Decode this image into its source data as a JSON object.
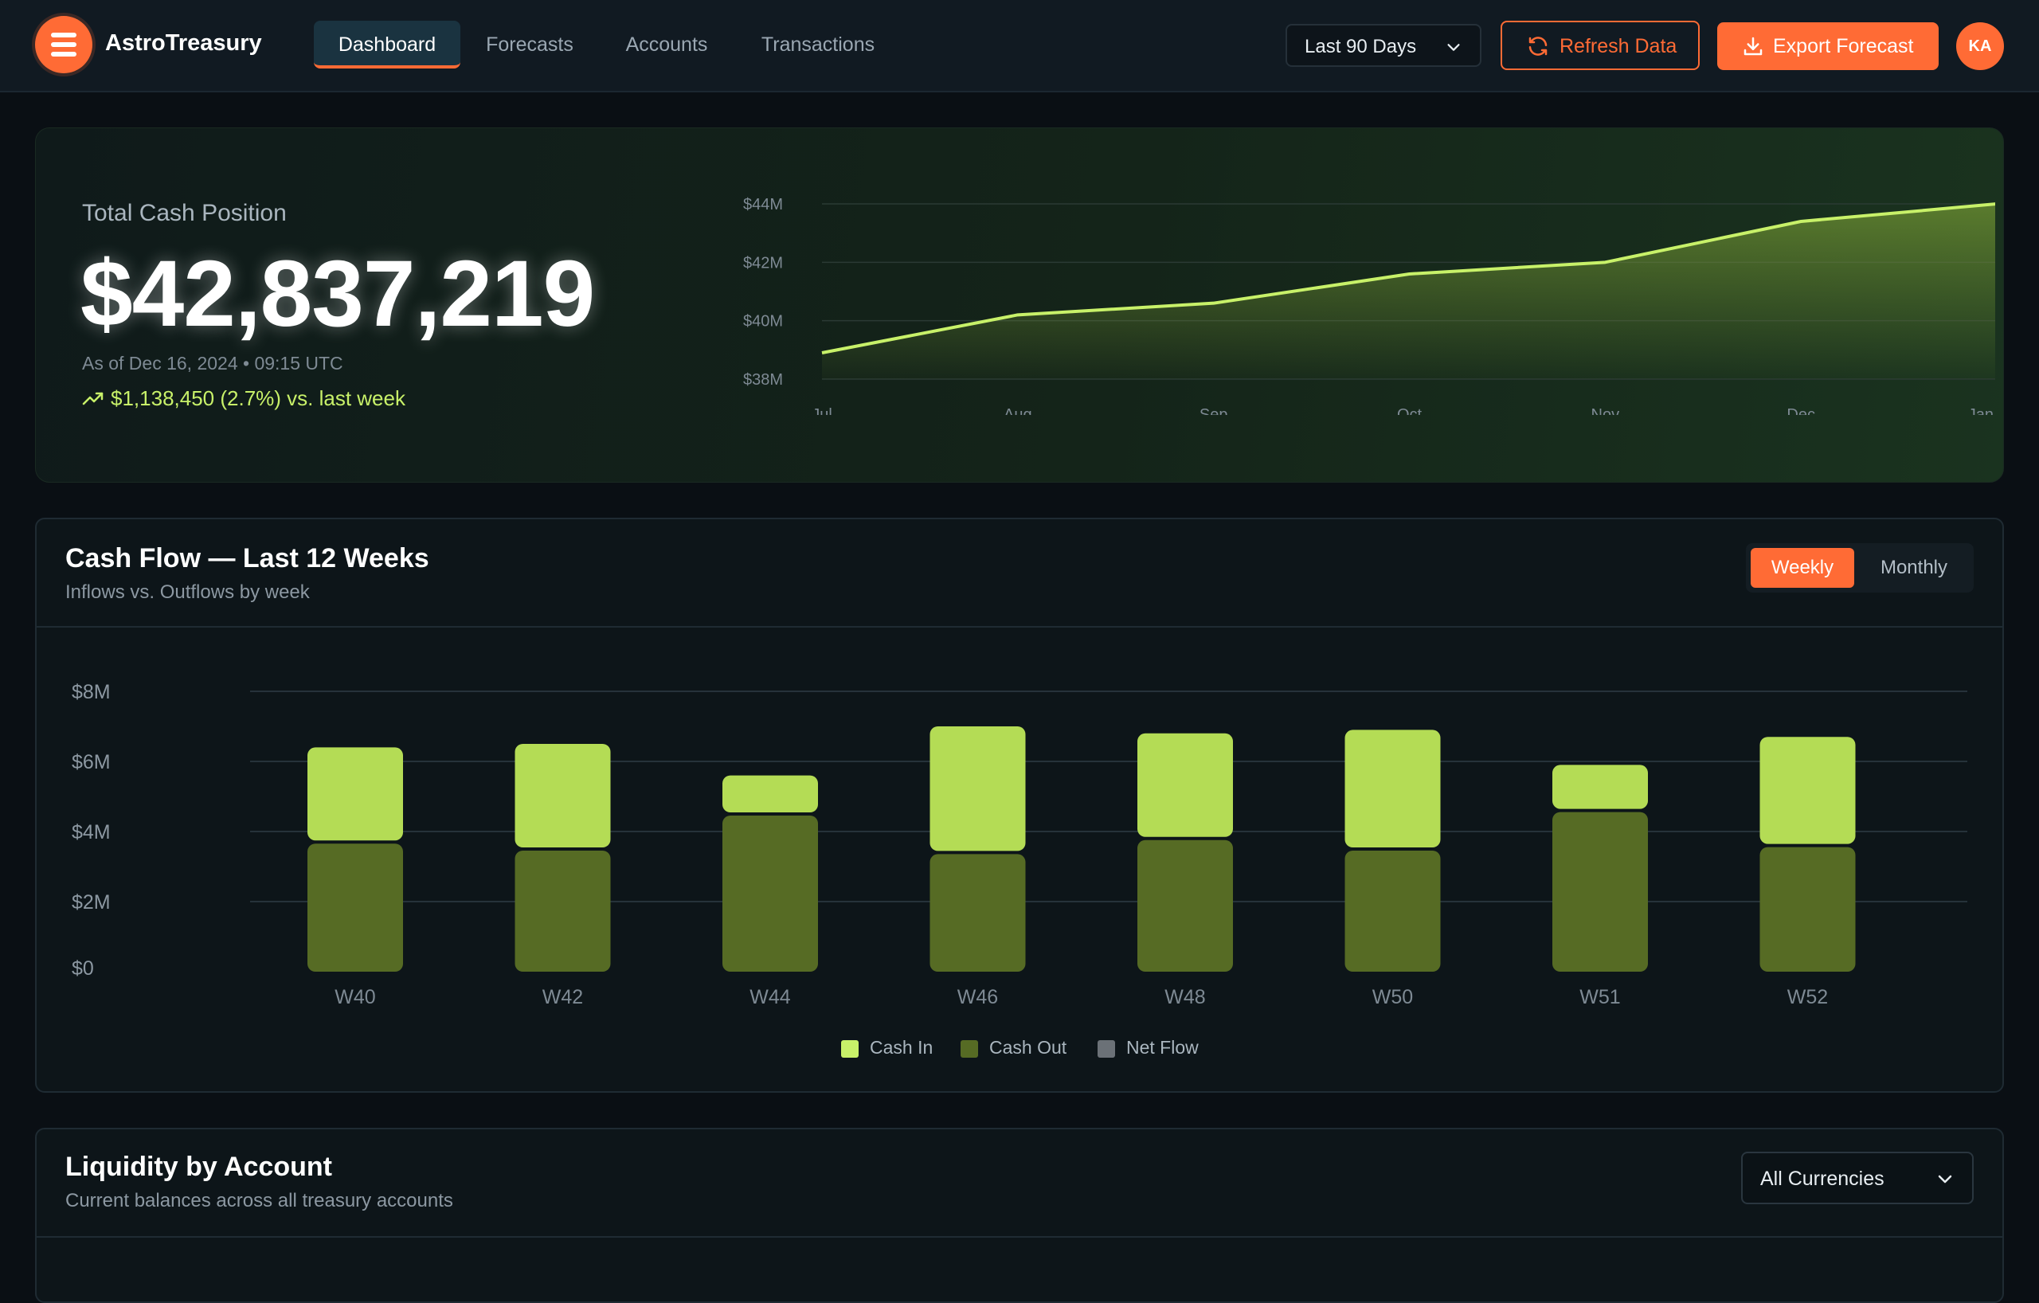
{
  "app": {
    "brand": "AstroTreasury",
    "nav": [
      {
        "label": "Dashboard",
        "active": true
      },
      {
        "label": "Forecasts",
        "active": false
      },
      {
        "label": "Accounts",
        "active": false
      },
      {
        "label": "Transactions",
        "active": false
      }
    ],
    "range_select": "Last 90 Days",
    "refresh_label": "Refresh Data",
    "export_label": "Export Forecast",
    "avatar_initials": "KA",
    "accent": "#ff6b35"
  },
  "hero": {
    "label": "Total Cash Position",
    "value": "$42,837,219",
    "as_of": "As of Dec 16, 2024 • 09:15 UTC",
    "delta": "$1,138,450 (2.7%) vs. last week",
    "delta_color": "#c8f169"
  },
  "cashflow": {
    "title": "Cash Flow — Last 12 Weeks",
    "subtitle": "Inflows vs. Outflows by week",
    "toggle": [
      {
        "label": "Weekly",
        "active": true
      },
      {
        "label": "Monthly",
        "active": false
      }
    ],
    "legend": [
      {
        "label": "Cash In",
        "color": "#c8f169"
      },
      {
        "label": "Cash Out",
        "color": "#566b24"
      },
      {
        "label": "Net Flow",
        "color": "#6b7177"
      }
    ]
  },
  "liquidity": {
    "title": "Liquidity by Account",
    "subtitle": "Current balances across all treasury accounts",
    "currency_select": "All Currencies"
  },
  "chart_data": [
    {
      "type": "area",
      "x": [
        "Jul",
        "Aug",
        "Sep",
        "Oct",
        "Nov",
        "Dec",
        "Jan"
      ],
      "y_tick_labels": [
        "$38M",
        "$40M",
        "$42M",
        "$44M"
      ],
      "ylim": [
        38,
        44
      ],
      "series": [
        {
          "values": [
            38.9,
            40.2,
            40.6,
            41.6,
            42.0,
            43.4,
            44.0
          ]
        }
      ],
      "line_color": "#c8f169",
      "grid": true
    },
    {
      "type": "bar",
      "stacked": true,
      "categories": [
        "W40",
        "W42",
        "W44",
        "W46",
        "W48",
        "W50",
        "W51",
        "W52"
      ],
      "y_tick_labels": [
        "$0",
        "$2M",
        "$4M",
        "$6M",
        "$8M"
      ],
      "ylim": [
        0,
        8
      ],
      "series": [
        {
          "name": "Cash Out",
          "values": [
            3.7,
            3.5,
            4.5,
            3.4,
            3.8,
            3.5,
            4.6,
            3.6
          ],
          "color": "#566b24"
        },
        {
          "name": "Cash In",
          "values": [
            2.7,
            3.0,
            1.1,
            3.6,
            3.0,
            3.4,
            1.3,
            3.1
          ],
          "color": "#b4dc55"
        }
      ],
      "grid": true,
      "legend": "bottom"
    }
  ]
}
